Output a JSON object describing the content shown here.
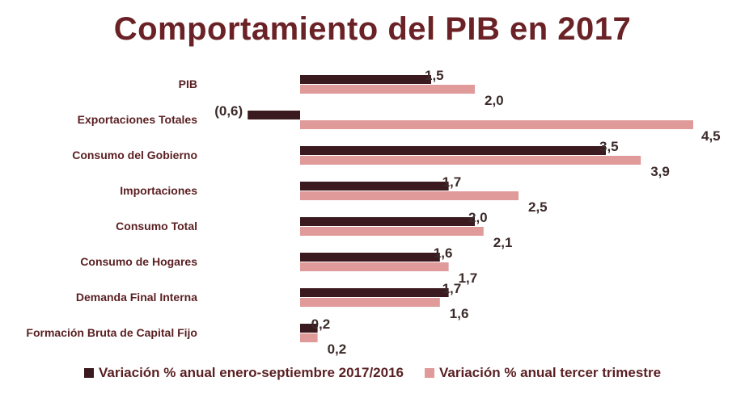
{
  "chart_data": {
    "type": "bar",
    "orientation": "horizontal",
    "title": "Comportamiento del PIB en 2017",
    "categories": [
      "PIB",
      "Exportaciones  Totales",
      "Consumo  del Gobierno",
      "Importaciones",
      "Consumo Total",
      "Consumo de Hogares",
      "Demanda Final Interna",
      "Formación Bruta de Capital Fijo"
    ],
    "series": [
      {
        "name": "Variación % anual enero-septiembre 2017/2016",
        "color": "#3a1a1e",
        "values": [
          1.5,
          -0.6,
          3.5,
          1.7,
          2.0,
          1.6,
          1.7,
          0.2
        ],
        "labels": [
          "1,5",
          "(0,6)",
          "3,5",
          "1,7",
          "2,0",
          "1,6",
          "1,7",
          "0,2"
        ]
      },
      {
        "name": "Variación % anual tercer trimestre",
        "color": "#e09a9a",
        "values": [
          2.0,
          4.5,
          3.9,
          2.5,
          2.1,
          1.7,
          1.6,
          0.2
        ],
        "labels": [
          "2,0",
          "4,5",
          "3,9",
          "2,5",
          "2,1",
          "1,7",
          "1,6",
          "0,2"
        ]
      }
    ],
    "xlim": [
      -0.6,
      4.5
    ],
    "grid": false,
    "legend_position": "bottom"
  }
}
